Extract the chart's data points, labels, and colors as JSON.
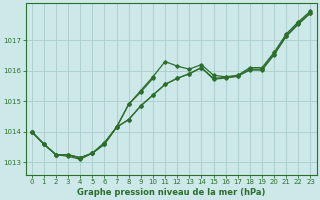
{
  "title": "Graphe pression niveau de la mer (hPa)",
  "background_color": "#cce8e8",
  "grid_color": "#aacccc",
  "line_color": "#2d6e2d",
  "xlim": [
    -0.5,
    23.5
  ],
  "ylim": [
    1012.6,
    1018.2
  ],
  "yticks": [
    1013,
    1014,
    1015,
    1016,
    1017
  ],
  "xticks": [
    0,
    1,
    2,
    3,
    4,
    5,
    6,
    7,
    8,
    9,
    10,
    11,
    12,
    13,
    14,
    15,
    16,
    17,
    18,
    19,
    20,
    21,
    22,
    23
  ],
  "s_hump": [
    1014.0,
    1013.6,
    1013.25,
    1013.25,
    1013.15,
    1013.3,
    1013.6,
    1014.15,
    1014.9,
    1015.35,
    1015.8,
    1016.3,
    1016.15,
    1016.05,
    1016.2,
    1015.85,
    1015.8,
    1015.85,
    1016.1,
    1016.1,
    1016.6,
    1017.2,
    1017.6,
    1017.95
  ],
  "s_linear1": [
    1014.0,
    1013.6,
    1013.25,
    1013.25,
    1013.15,
    1013.3,
    1013.6,
    1014.15,
    1014.4,
    1014.85,
    1015.2,
    1015.55,
    1015.75,
    1015.9,
    1016.1,
    1015.75,
    1015.78,
    1015.82,
    1016.05,
    1016.05,
    1016.55,
    1017.15,
    1017.55,
    1017.9
  ],
  "s_linear2": [
    1014.0,
    1013.6,
    1013.25,
    1013.25,
    1013.15,
    1013.3,
    1013.6,
    1014.15,
    1014.4,
    1014.85,
    1015.2,
    1015.55,
    1015.75,
    1015.9,
    1016.1,
    1015.72,
    1015.76,
    1015.82,
    1016.02,
    1016.02,
    1016.52,
    1017.12,
    1017.52,
    1017.88
  ],
  "s_dip": [
    1014.0,
    1013.6,
    1013.25,
    1013.2,
    1013.1,
    1013.3,
    1013.65,
    1014.15,
    1014.9,
    1015.3,
    1015.75,
    null,
    null,
    null,
    null,
    null,
    null,
    null,
    null,
    null,
    null,
    null,
    null,
    null
  ]
}
